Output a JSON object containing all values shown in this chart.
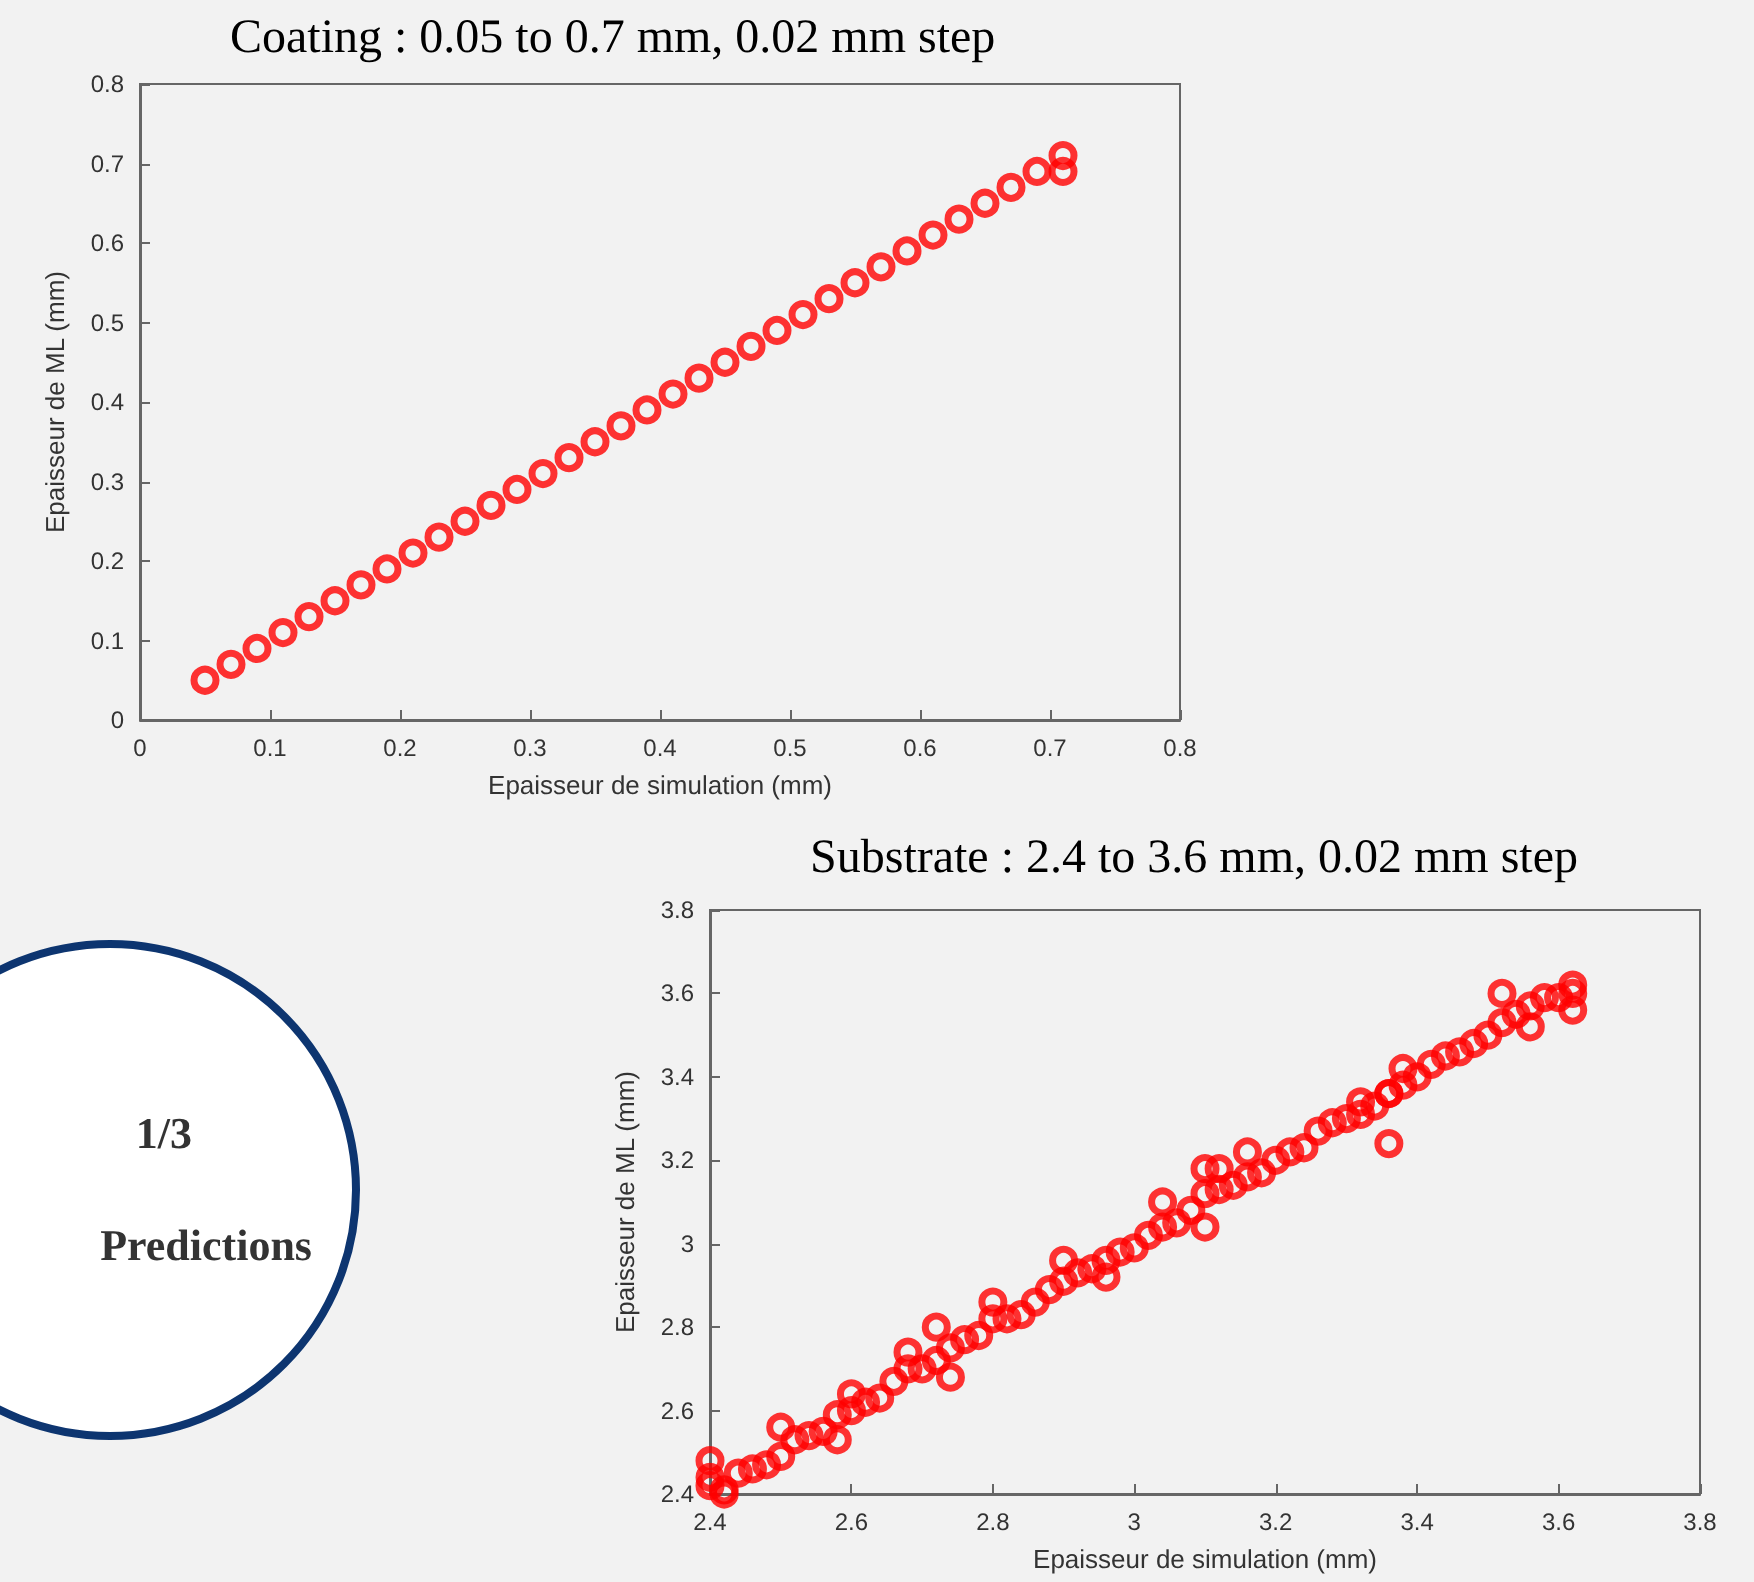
{
  "chart_data": [
    {
      "type": "scatter",
      "title": "Coating : 0.05 to 0.7 mm, 0.02 mm step",
      "xlabel": "Epaisseur de simulation (mm)",
      "ylabel": "Epaisseur de ML (mm)",
      "xlim": [
        0,
        0.8
      ],
      "ylim": [
        0,
        0.8
      ],
      "xticks": [
        0,
        0.1,
        0.2,
        0.3,
        0.4,
        0.5,
        0.6,
        0.7,
        0.8
      ],
      "yticks": [
        0,
        0.1,
        0.2,
        0.3,
        0.4,
        0.5,
        0.6,
        0.7,
        0.8
      ],
      "marker": "circle",
      "grid": false,
      "series": [
        {
          "color": "#ff0000",
          "x": [
            0.05,
            0.07,
            0.09,
            0.11,
            0.13,
            0.15,
            0.17,
            0.19,
            0.21,
            0.23,
            0.25,
            0.27,
            0.29,
            0.31,
            0.33,
            0.35,
            0.37,
            0.39,
            0.41,
            0.43,
            0.45,
            0.47,
            0.49,
            0.51,
            0.53,
            0.55,
            0.57,
            0.59,
            0.61,
            0.63,
            0.65,
            0.67,
            0.69,
            0.71,
            0.71
          ],
          "values": [
            0.05,
            0.07,
            0.09,
            0.11,
            0.13,
            0.15,
            0.17,
            0.19,
            0.21,
            0.23,
            0.25,
            0.27,
            0.29,
            0.31,
            0.33,
            0.35,
            0.37,
            0.39,
            0.41,
            0.43,
            0.45,
            0.47,
            0.49,
            0.51,
            0.53,
            0.55,
            0.57,
            0.59,
            0.61,
            0.63,
            0.65,
            0.67,
            0.69,
            0.71,
            0.69
          ]
        }
      ]
    },
    {
      "type": "scatter",
      "title": "Substrate : 2.4 to 3.6 mm, 0.02 mm step",
      "xlabel": "Epaisseur de simulation (mm)",
      "ylabel": "Epaisseur de ML (mm)",
      "xlim": [
        2.4,
        3.8
      ],
      "ylim": [
        2.4,
        3.8
      ],
      "xticks": [
        2.4,
        2.6,
        2.8,
        3,
        3.2,
        3.4,
        3.6,
        3.8
      ],
      "yticks": [
        2.4,
        2.6,
        2.8,
        3,
        3.2,
        3.4,
        3.6,
        3.8
      ],
      "marker": "circle",
      "grid": false,
      "series": [
        {
          "color": "#ff0000",
          "x": [
            2.4,
            2.42,
            2.44,
            2.46,
            2.48,
            2.5,
            2.52,
            2.54,
            2.56,
            2.58,
            2.6,
            2.62,
            2.64,
            2.66,
            2.68,
            2.7,
            2.72,
            2.74,
            2.76,
            2.78,
            2.8,
            2.82,
            2.84,
            2.86,
            2.88,
            2.9,
            2.92,
            2.94,
            2.96,
            2.98,
            3.0,
            3.02,
            3.04,
            3.06,
            3.08,
            3.1,
            3.12,
            3.14,
            3.16,
            3.18,
            3.2,
            3.22,
            3.24,
            3.26,
            3.28,
            3.3,
            3.32,
            3.34,
            3.36,
            3.38,
            3.4,
            3.42,
            3.44,
            3.46,
            3.48,
            3.5,
            3.52,
            3.54,
            3.56,
            3.58,
            3.6,
            3.62,
            2.72,
            2.74,
            3.04,
            3.1,
            3.12,
            3.1,
            3.38,
            3.32,
            3.36,
            3.36,
            2.96,
            2.9,
            2.8,
            2.5,
            2.58,
            2.4,
            3.52,
            3.62,
            3.62,
            3.56,
            3.16,
            2.68,
            2.6,
            2.4,
            2.42
          ],
          "values": [
            2.42,
            2.41,
            2.45,
            2.46,
            2.47,
            2.49,
            2.53,
            2.54,
            2.55,
            2.59,
            2.6,
            2.62,
            2.63,
            2.67,
            2.7,
            2.7,
            2.72,
            2.75,
            2.77,
            2.78,
            2.82,
            2.82,
            2.83,
            2.86,
            2.89,
            2.91,
            2.93,
            2.94,
            2.96,
            2.98,
            2.99,
            3.02,
            3.04,
            3.05,
            3.08,
            3.12,
            3.13,
            3.14,
            3.16,
            3.17,
            3.2,
            3.22,
            3.23,
            3.27,
            3.29,
            3.3,
            3.31,
            3.33,
            3.36,
            3.38,
            3.4,
            3.43,
            3.45,
            3.46,
            3.48,
            3.5,
            3.53,
            3.55,
            3.57,
            3.59,
            3.59,
            3.6,
            2.8,
            2.68,
            3.1,
            3.18,
            3.18,
            3.04,
            3.42,
            3.34,
            3.36,
            3.24,
            2.92,
            2.96,
            2.86,
            2.56,
            2.53,
            2.48,
            3.6,
            3.62,
            3.56,
            3.52,
            3.22,
            2.74,
            2.64,
            2.44,
            2.4
          ]
        }
      ]
    },
    {
      "type": "other",
      "annotations": [
        "1/3",
        "Predictions"
      ]
    }
  ]
}
